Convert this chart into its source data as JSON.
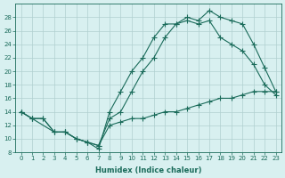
{
  "line1_x": [
    0,
    1,
    2,
    3,
    4,
    5,
    6,
    7,
    8,
    9,
    10,
    11,
    12,
    13,
    14,
    15,
    16,
    17,
    18,
    19,
    20,
    21,
    22,
    23
  ],
  "line1_y": [
    14,
    13,
    13,
    11,
    11,
    10,
    9.5,
    8.5,
    14,
    17,
    20,
    22,
    25,
    27,
    27,
    28,
    27.5,
    29,
    28,
    27.5,
    27,
    24,
    20.5,
    17
  ],
  "line2_x": [
    0,
    1,
    3,
    4,
    5,
    6,
    7,
    8,
    9,
    10,
    11,
    12,
    13,
    14,
    15,
    16,
    17,
    18,
    19,
    20,
    21,
    22,
    23
  ],
  "line2_y": [
    14,
    13,
    11,
    11,
    10,
    9.5,
    9,
    13,
    14,
    17,
    20,
    22,
    25,
    27,
    27.5,
    27,
    27.5,
    25,
    24,
    23,
    21,
    18,
    16.5
  ],
  "line3_x": [
    0,
    1,
    2,
    3,
    4,
    5,
    6,
    7,
    8,
    9,
    10,
    11,
    12,
    13,
    14,
    15,
    16,
    17,
    18,
    19,
    20,
    21,
    22,
    23
  ],
  "line3_y": [
    14,
    13,
    13,
    11,
    11,
    10,
    9.5,
    9,
    12,
    12.5,
    13,
    13,
    13.5,
    14,
    14,
    14.5,
    15,
    15.5,
    16,
    16,
    16.5,
    17,
    17,
    17
  ],
  "color": "#1a6b5a",
  "bg_color": "#d8f0f0",
  "grid_color": "#b0d0d0",
  "ylim": [
    8,
    30
  ],
  "xlim": [
    -0.5,
    23.5
  ],
  "yticks": [
    8,
    10,
    12,
    14,
    16,
    18,
    20,
    22,
    24,
    26,
    28
  ],
  "xticks": [
    0,
    1,
    2,
    3,
    4,
    5,
    6,
    7,
    8,
    9,
    10,
    11,
    12,
    13,
    14,
    15,
    16,
    17,
    18,
    19,
    20,
    21,
    22,
    23
  ],
  "xlabel": "Humidex (Indice chaleur)",
  "marker": "+"
}
